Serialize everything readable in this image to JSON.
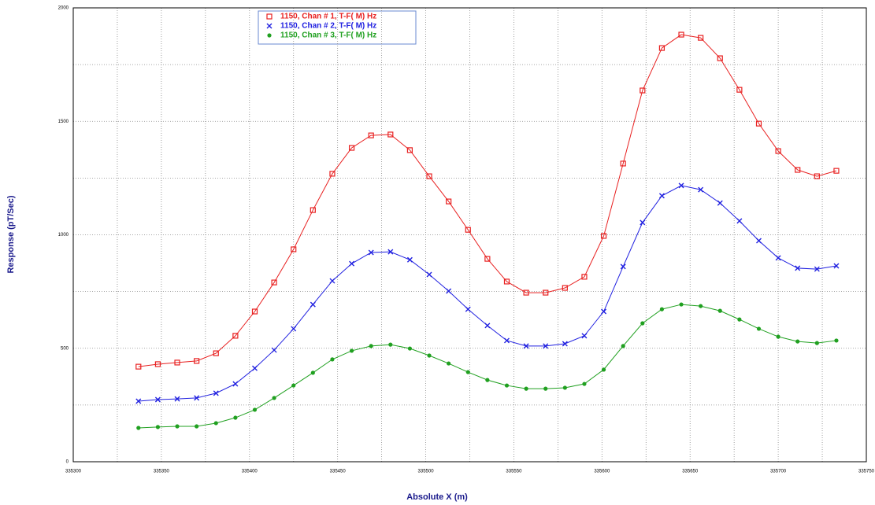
{
  "chart_data": {
    "type": "line",
    "x_label": "Absolute X (m)",
    "y_label": "Response (pT/Sec)",
    "xlim": [
      335300,
      335750
    ],
    "xticks": [
      335300,
      335350,
      335400,
      335450,
      335500,
      335550,
      335600,
      335650,
      335700,
      335750
    ],
    "ylim": [
      0,
      2000
    ],
    "yticks": [
      0,
      500,
      1000,
      1500,
      2000
    ],
    "grid": true,
    "x": [
      335337,
      335348,
      335359,
      335370,
      335381,
      335392,
      335403,
      335414,
      335425,
      335436,
      335447,
      335458,
      335469,
      335480,
      335491,
      335502,
      335513,
      335524,
      335535,
      335546,
      335557,
      335568,
      335579,
      335590,
      335601,
      335612,
      335623,
      335634,
      335645,
      335656,
      335667,
      335678,
      335689,
      335700,
      335711,
      335722,
      335733
    ],
    "series": [
      {
        "name": "1150,  Chan # 1,  T-F( M) Hz",
        "color": "#e82020",
        "marker": "square",
        "values": [
          419,
          430,
          437,
          444,
          478,
          555,
          662,
          790,
          936,
          1109,
          1269,
          1383,
          1438,
          1442,
          1373,
          1258,
          1147,
          1022,
          894,
          794,
          745,
          745,
          766,
          815,
          995,
          1314,
          1636,
          1823,
          1882,
          1868,
          1778,
          1639,
          1490,
          1369,
          1286,
          1258,
          1282
        ]
      },
      {
        "name": "1150,  Chan # 2,  T-F( M) Hz",
        "color": "#2020e0",
        "marker": "x",
        "values": [
          267,
          274,
          277,
          281,
          302,
          343,
          412,
          492,
          586,
          693,
          797,
          873,
          922,
          925,
          890,
          825,
          752,
          672,
          600,
          534,
          510,
          510,
          520,
          555,
          662,
          860,
          1054,
          1172,
          1217,
          1199,
          1140,
          1061,
          974,
          898,
          853,
          849,
          863
        ]
      },
      {
        "name": "1150,  Chan # 3,  T-F( M) Hz",
        "color": "#20a020",
        "marker": "circle",
        "values": [
          149,
          153,
          156,
          156,
          170,
          194,
          229,
          281,
          336,
          392,
          451,
          489,
          510,
          516,
          499,
          468,
          433,
          395,
          360,
          336,
          322,
          322,
          326,
          343,
          406,
          510,
          610,
          672,
          693,
          686,
          665,
          627,
          586,
          551,
          530,
          523,
          534
        ]
      }
    ]
  }
}
